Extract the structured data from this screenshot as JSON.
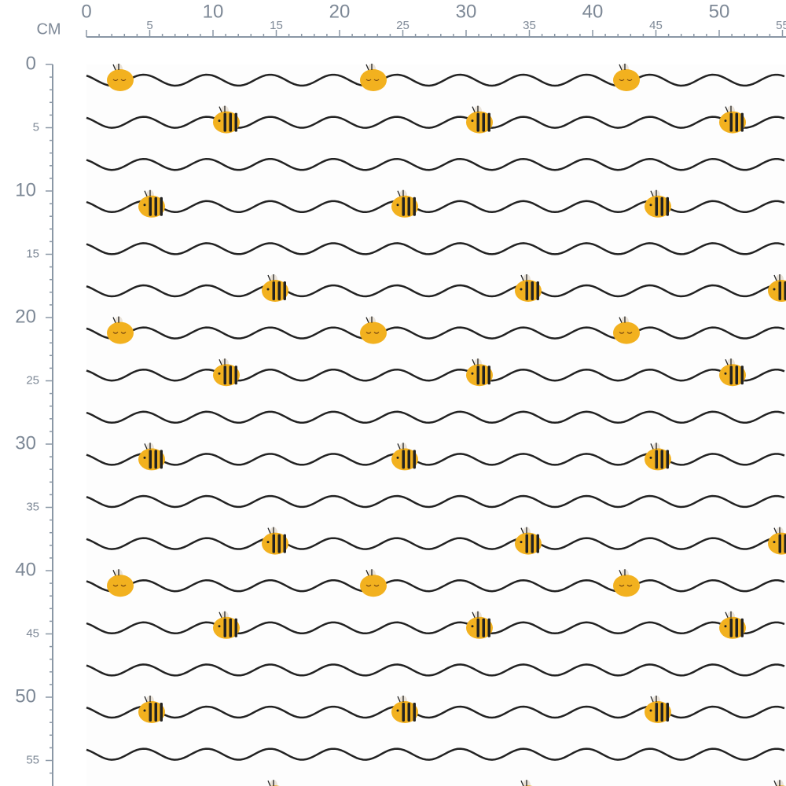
{
  "ruler": {
    "unit": "CM",
    "top_labels": [
      0,
      5,
      10,
      15,
      20,
      25,
      30,
      35,
      40,
      45,
      50,
      55
    ],
    "left_labels": [
      0,
      5,
      10,
      15,
      20,
      25,
      30,
      35,
      40,
      45,
      50,
      55
    ]
  }
}
